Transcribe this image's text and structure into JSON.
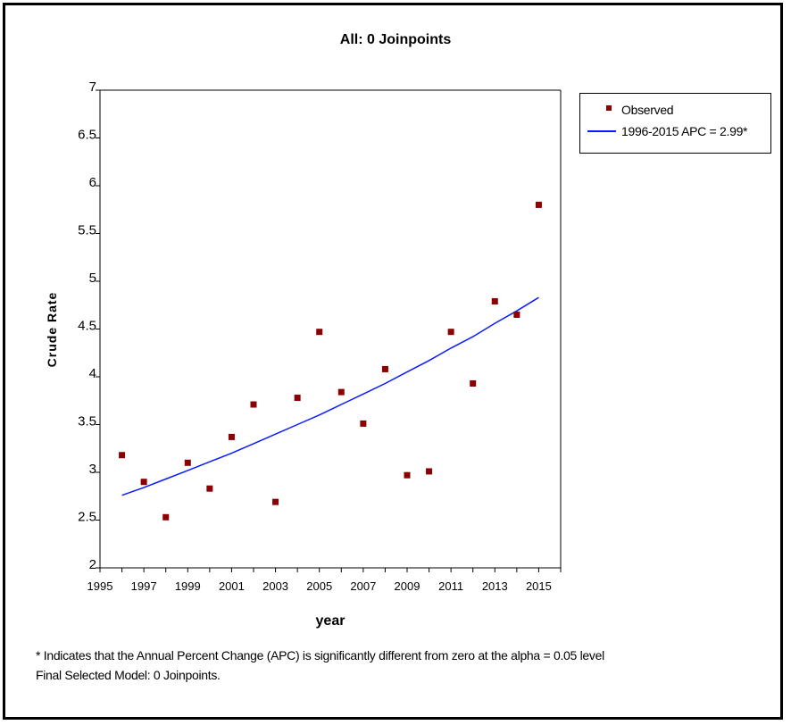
{
  "chart_data": {
    "type": "scatter",
    "title": "All: 0 Joinpoints",
    "xlabel": "year",
    "ylabel": "Crude Rate",
    "xlim": [
      1995,
      2016
    ],
    "ylim": [
      2,
      7
    ],
    "x_ticks": [
      1995,
      1997,
      1999,
      2001,
      2003,
      2005,
      2007,
      2009,
      2011,
      2013,
      2015
    ],
    "y_ticks": [
      2,
      2.5,
      3,
      3.5,
      4,
      4.5,
      5,
      5.5,
      6,
      6.5,
      7
    ],
    "y_tick_labels": [
      "2",
      "2.5",
      "3",
      "3.5",
      "4",
      "4.5",
      "5",
      "5.5",
      "6",
      "6.5",
      "7"
    ],
    "grid": true,
    "legend_position": "right",
    "series": [
      {
        "name": "Observed",
        "kind": "points",
        "color": "#8b0000",
        "x": [
          1996,
          1997,
          1998,
          1999,
          2000,
          2001,
          2002,
          2003,
          2004,
          2005,
          2006,
          2007,
          2008,
          2009,
          2010,
          2011,
          2012,
          2013,
          2014,
          2015
        ],
        "y": [
          3.18,
          2.9,
          2.53,
          3.1,
          2.83,
          3.37,
          3.71,
          2.69,
          3.78,
          4.47,
          3.84,
          3.51,
          4.08,
          2.97,
          3.01,
          4.47,
          3.93,
          4.79,
          4.65,
          5.8
        ]
      },
      {
        "name": "1996-2015 APC  = 2.99*",
        "kind": "fit",
        "color": "#0a1bff",
        "x": [
          1996,
          1997,
          1998,
          1999,
          2000,
          2001,
          2002,
          2003,
          2004,
          2005,
          2006,
          2007,
          2008,
          2009,
          2010,
          2011,
          2012,
          2013,
          2014,
          2015
        ],
        "y": [
          2.76,
          2.84,
          2.93,
          3.02,
          3.11,
          3.2,
          3.3,
          3.4,
          3.5,
          3.6,
          3.71,
          3.82,
          3.93,
          4.05,
          4.17,
          4.3,
          4.42,
          4.56,
          4.69,
          4.83
        ]
      }
    ]
  },
  "footnotes": {
    "line1": "* Indicates that the Annual Percent Change (APC) is significantly different from zero at the alpha = 0.05 level",
    "line2": "Final Selected Model: 0 Joinpoints."
  }
}
